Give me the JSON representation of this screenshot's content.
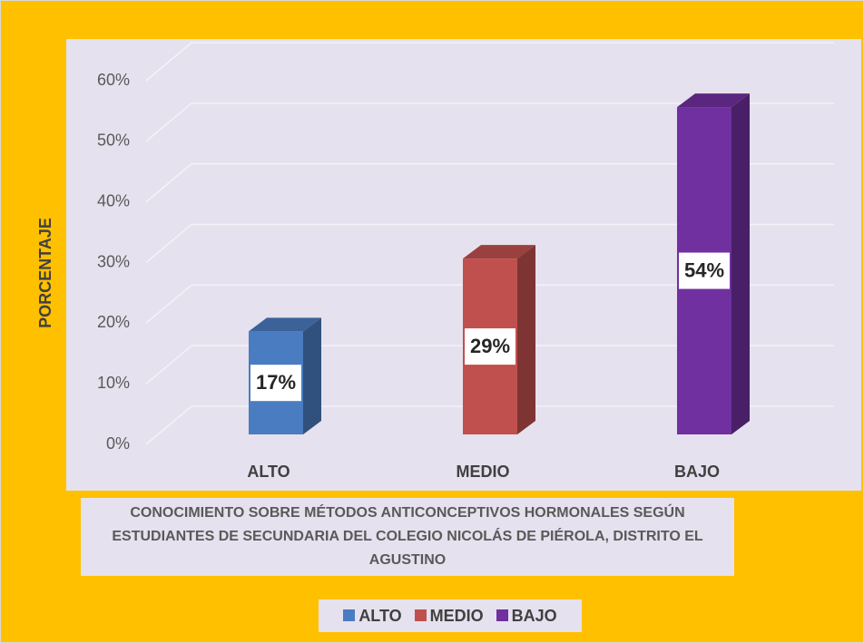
{
  "chart_data": {
    "type": "bar3d",
    "title": "CONOCIMIENTO SOBRE MÉTODOS ANTICONCEPTIVOS HORMONALES SEGÚN ESTUDIANTES DE SECUNDARIA DEL COLEGIO NICOLÁS DE PIÉROLA, DISTRITO EL AGUSTINO",
    "y_label": "PORCENTAJE",
    "categories": [
      "ALTO",
      "MEDIO",
      "BAJO"
    ],
    "values": [
      17,
      29,
      54
    ],
    "value_labels": [
      "17%",
      "29%",
      "54%"
    ],
    "colors": [
      "#4a7cc1",
      "#c0504d",
      "#7030a0"
    ],
    "ylim": [
      0,
      60
    ],
    "yticks": [
      {
        "value": 0,
        "label": "0%"
      },
      {
        "value": 10,
        "label": "10%"
      },
      {
        "value": 20,
        "label": "20%"
      },
      {
        "value": 30,
        "label": "30%"
      },
      {
        "value": 40,
        "label": "40%"
      },
      {
        "value": 50,
        "label": "50%"
      },
      {
        "value": 60,
        "label": "60%"
      }
    ],
    "grid": true
  }
}
